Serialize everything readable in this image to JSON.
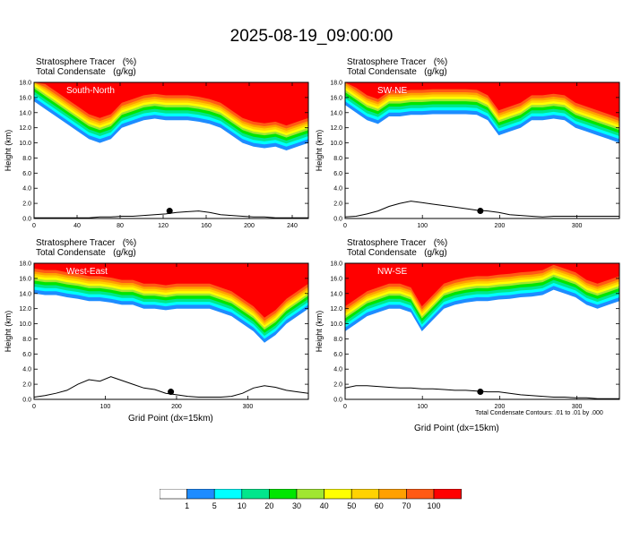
{
  "title": "2025-08-19_09:00:00",
  "field_label": "Stratosphere Tracer   (%)",
  "contour_label": "Total Condensate   (g/kg)",
  "ylabel": "Height (km)",
  "xlabel": "Grid Point (dx=15km)",
  "contour_note": "Total Condensate Contours: .01 to .01 by .000",
  "chart_data": [
    {
      "type": "heatmap",
      "name": "South-North",
      "xlim": [
        0,
        255
      ],
      "xticks": [
        0,
        40,
        80,
        120,
        160,
        200,
        240
      ],
      "ylim": [
        0,
        18
      ],
      "yticks": [
        0,
        2,
        4,
        6,
        8,
        10,
        12,
        14,
        16,
        18
      ],
      "marker_x": 126,
      "tracer_base_km": [
        15.5,
        14.5,
        13.5,
        12.5,
        11.5,
        10.5,
        10.0,
        10.5,
        12.0,
        12.5,
        13.0,
        13.2,
        13.0,
        13.0,
        13.0,
        12.8,
        12.5,
        12.0,
        11.0,
        10.0,
        9.5,
        9.3,
        9.5,
        9.0,
        9.5,
        10.0
      ],
      "terrain_km": [
        0.1,
        0.1,
        0.1,
        0.1,
        0.1,
        0.1,
        0.2,
        0.2,
        0.3,
        0.3,
        0.4,
        0.5,
        0.6,
        0.8,
        0.9,
        1.0,
        0.8,
        0.5,
        0.4,
        0.3,
        0.2,
        0.2,
        0.1,
        0.1,
        0.1,
        0.1
      ]
    },
    {
      "type": "heatmap",
      "name": "SW-NE",
      "xlim": [
        0,
        355
      ],
      "xticks": [
        0,
        100,
        200,
        300
      ],
      "ylim": [
        0,
        18
      ],
      "yticks": [
        0,
        2,
        4,
        6,
        8,
        10,
        12,
        14,
        16,
        18
      ],
      "marker_x": 175,
      "tracer_base_km": [
        15.0,
        14.0,
        13.0,
        12.5,
        13.5,
        13.5,
        13.7,
        13.7,
        13.8,
        13.8,
        13.8,
        13.8,
        13.7,
        13.0,
        11.0,
        11.5,
        12.0,
        13.0,
        13.0,
        13.2,
        13.0,
        12.0,
        11.5,
        11.0,
        10.5,
        10.0
      ],
      "terrain_km": [
        0.2,
        0.3,
        0.6,
        1.0,
        1.6,
        2.0,
        2.3,
        2.1,
        1.9,
        1.7,
        1.5,
        1.3,
        1.1,
        1.0,
        0.8,
        0.5,
        0.4,
        0.3,
        0.2,
        0.3,
        0.3,
        0.3,
        0.3,
        0.3,
        0.3,
        0.3
      ]
    },
    {
      "type": "heatmap",
      "name": "West-East",
      "xlim": [
        0,
        385
      ],
      "xticks": [
        0,
        100,
        200,
        300
      ],
      "ylim": [
        0,
        18
      ],
      "yticks": [
        0,
        2,
        4,
        6,
        8,
        10,
        12,
        14,
        16,
        18
      ],
      "marker_x": 192,
      "tracer_base_km": [
        14.0,
        13.8,
        13.8,
        13.5,
        13.3,
        13.0,
        13.0,
        12.8,
        12.5,
        12.5,
        12.0,
        12.0,
        11.8,
        12.0,
        12.0,
        12.0,
        12.0,
        11.5,
        11.0,
        10.0,
        9.0,
        7.5,
        8.5,
        10.0,
        11.0,
        12.0
      ],
      "terrain_km": [
        0.3,
        0.5,
        0.8,
        1.2,
        2.0,
        2.6,
        2.4,
        3.0,
        2.5,
        2.0,
        1.5,
        1.3,
        0.8,
        0.6,
        0.4,
        0.3,
        0.3,
        0.3,
        0.4,
        0.8,
        1.5,
        1.8,
        1.6,
        1.2,
        1.0,
        0.8
      ]
    },
    {
      "type": "heatmap",
      "name": "NW-SE",
      "xlim": [
        0,
        355
      ],
      "xticks": [
        0,
        100,
        200,
        300
      ],
      "ylim": [
        0,
        18
      ],
      "yticks": [
        0,
        2,
        4,
        6,
        8,
        10,
        12,
        14,
        16,
        18
      ],
      "marker_x": 175,
      "tracer_base_km": [
        9.0,
        10.0,
        11.0,
        11.5,
        12.0,
        12.0,
        11.5,
        9.0,
        10.5,
        12.0,
        12.5,
        12.8,
        13.0,
        13.0,
        13.2,
        13.3,
        13.5,
        13.6,
        13.8,
        14.5,
        14.0,
        13.5,
        12.5,
        12.0,
        12.5,
        13.0
      ],
      "terrain_km": [
        1.5,
        1.8,
        1.8,
        1.7,
        1.6,
        1.5,
        1.5,
        1.4,
        1.4,
        1.3,
        1.2,
        1.2,
        1.1,
        1.0,
        1.0,
        0.8,
        0.6,
        0.5,
        0.4,
        0.3,
        0.3,
        0.2,
        0.2,
        0.1,
        0.1,
        0.1
      ]
    }
  ],
  "colorbar": {
    "levels": [
      "1",
      "5",
      "10",
      "20",
      "30",
      "40",
      "50",
      "60",
      "70",
      "100"
    ],
    "colors": [
      "#ffffff",
      "#1e8cff",
      "#00ffff",
      "#00e68c",
      "#00e600",
      "#a0e632",
      "#ffff00",
      "#ffd200",
      "#ffa000",
      "#ff5a14",
      "#ff0000"
    ]
  }
}
